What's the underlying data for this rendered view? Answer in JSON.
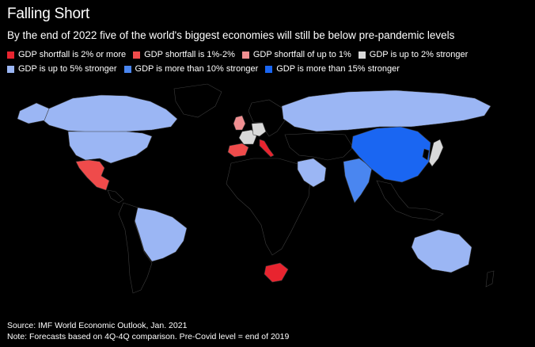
{
  "title": "Falling Short",
  "subtitle": "By the end of 2022 five of the world's biggest economies will still be below pre-pandemic levels",
  "legend": [
    {
      "label": "GDP shortfall is 2% or more",
      "color": "#e8242f"
    },
    {
      "label": "GDP shortfall is 1%-2%",
      "color": "#ef4b4b"
    },
    {
      "label": "GDP shortfall of up to 1%",
      "color": "#f08f91"
    },
    {
      "label": "GDP is up to 2% stronger",
      "color": "#d9d9d9"
    },
    {
      "label": "GDP is up to 5% stronger",
      "color": "#9bb6f4"
    },
    {
      "label": "GDP is more than 10% stronger",
      "color": "#4a86f0"
    },
    {
      "label": "GDP is more than 15% stronger",
      "color": "#1a66f2"
    }
  ],
  "colors": {
    "background": "#000000",
    "no_data": "#000000",
    "border": "#3c3c3c"
  },
  "regions": {
    "shortfall_2_plus": [
      "Italy",
      "South Africa"
    ],
    "shortfall_1_2": [
      "Mexico",
      "Spain"
    ],
    "shortfall_up_to_1": [
      "United Kingdom"
    ],
    "stronger_up_to_2": [
      "Germany",
      "France",
      "Japan"
    ],
    "stronger_up_to_5": [
      "United States",
      "Canada",
      "Brazil",
      "Russia",
      "Australia",
      "Saudi Arabia"
    ],
    "stronger_more_10": [
      "India"
    ],
    "stronger_more_15": [
      "China"
    ]
  },
  "source": "Source: IMF World Economic Outlook, Jan. 2021",
  "note": "Note: Forecasts based on 4Q-4Q comparison. Pre-Covid level = end of 2019"
}
